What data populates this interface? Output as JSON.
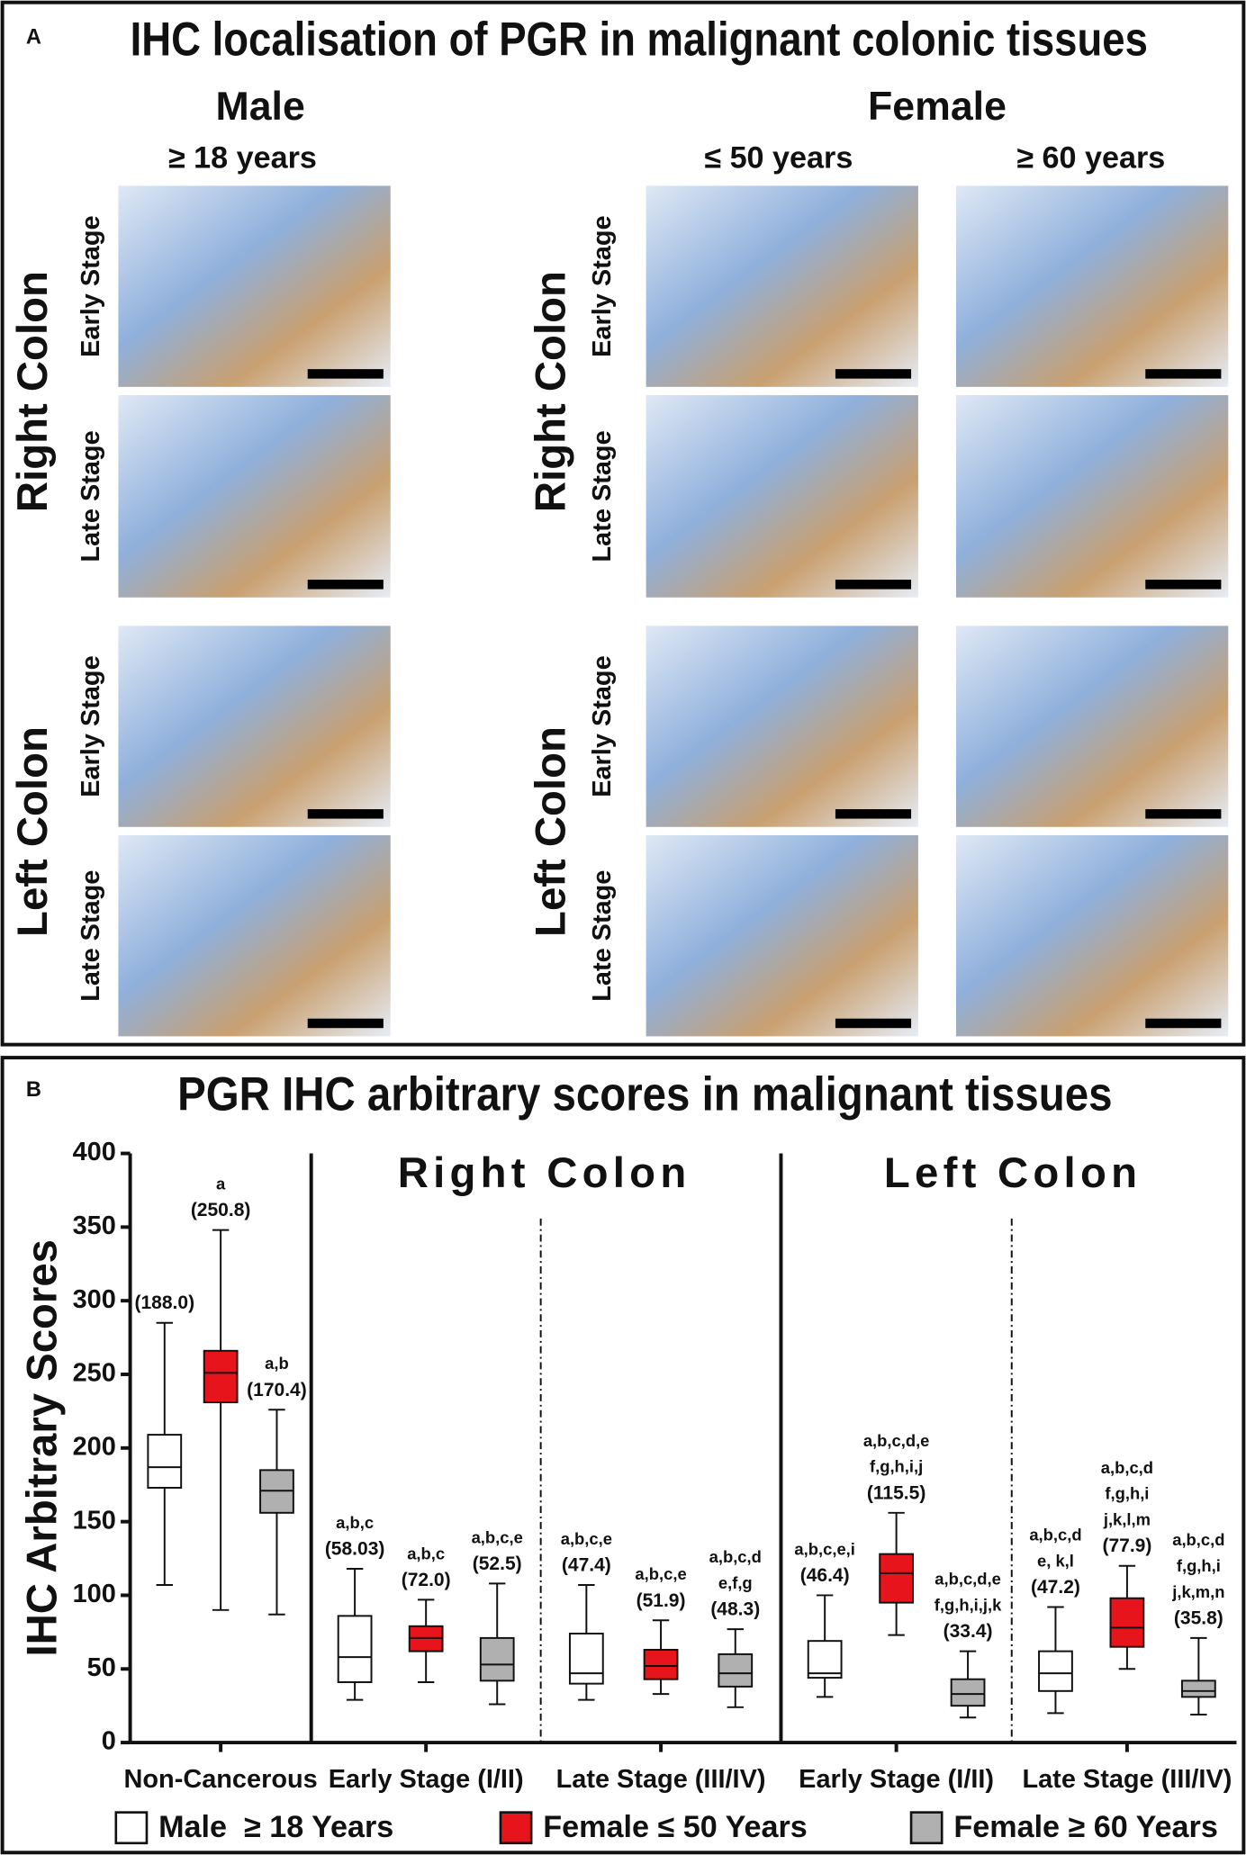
{
  "panel_a": {
    "label": "A",
    "title": "IHC localisation of PGR in malignant colonic tissues",
    "sexes": [
      "Male",
      "Female"
    ],
    "ages": [
      "≥ 18 years",
      "≤ 50 years",
      "≥ 60 years"
    ],
    "regions": [
      "Right Colon",
      "Left Colon"
    ],
    "stages": [
      "Early Stage",
      "Late Stage"
    ]
  },
  "chart_data": {
    "type": "box",
    "panel_label": "B",
    "title": "PGR IHC arbitrary scores in malignant tissues",
    "ylabel": "IHC Arbitrary Scores",
    "ylim": [
      0,
      400
    ],
    "yticks": [
      0,
      50,
      100,
      150,
      200,
      250,
      300,
      350,
      400
    ],
    "sections": [
      "Right Colon",
      "Left Colon"
    ],
    "categories": [
      "Non-Cancerous",
      "Early Stage (I/II)",
      "Late Stage (III/IV)",
      "Early Stage (I/II)",
      "Late Stage (III/IV)"
    ],
    "series": [
      {
        "name": "Male  ≥ 18 Years",
        "color": "#ffffff",
        "min": [
          107,
          29,
          29,
          31,
          20
        ],
        "q1": [
          173,
          41,
          40,
          44,
          35
        ],
        "median": [
          187,
          58,
          47,
          47,
          47
        ],
        "q3": [
          209,
          86,
          74,
          69,
          62
        ],
        "max": [
          285,
          118,
          107,
          100,
          92
        ],
        "annotations": [
          [
            "(188.0)"
          ],
          [
            "a,b,c",
            "(58.03)"
          ],
          [
            "a,b,c,e",
            "(47.4)"
          ],
          [
            "a,b,c,e,i",
            "(46.4)"
          ],
          [
            "a,b,c,d",
            "e, k,l",
            "(47.2)"
          ]
        ]
      },
      {
        "name": "Female ≤ 50 Years",
        "color": "#e8141b",
        "min": [
          90,
          41,
          33,
          73,
          50
        ],
        "q1": [
          231,
          62,
          43,
          95,
          65
        ],
        "median": [
          251,
          71,
          52,
          115,
          78
        ],
        "q3": [
          266,
          79,
          63,
          128,
          98
        ],
        "max": [
          348,
          97,
          83,
          156,
          120
        ],
        "annotations": [
          [
            "a",
            "(250.8)"
          ],
          [
            "a,b,c",
            "(72.0)"
          ],
          [
            "a,b,c,e",
            "(51.9)"
          ],
          [
            "a,b,c,d,e",
            "f,g,h,i,j",
            "(115.5)"
          ],
          [
            "a,b,c,d",
            "f,g,h,i",
            "j,k,l,m",
            "(77.9)"
          ]
        ]
      },
      {
        "name": "Female ≥ 60 Years",
        "color": "#b0b0b0",
        "min": [
          87,
          26,
          24,
          17,
          19
        ],
        "q1": [
          156,
          42,
          38,
          25,
          31
        ],
        "median": [
          171,
          53,
          47,
          33,
          35
        ],
        "q3": [
          185,
          71,
          60,
          43,
          42
        ],
        "max": [
          226,
          108,
          77,
          62,
          71
        ],
        "annotations": [
          [
            "a,b",
            "(170.4)"
          ],
          [
            "a,b,c,e",
            "(52.5)"
          ],
          [
            "a,b,c,d",
            "e,f,g",
            "(48.3)"
          ],
          [
            "a,b,c,d,e",
            "f,g,h,i,j,k",
            "(33.4)"
          ],
          [
            "a,b,c,d",
            "f,g,h,i",
            "j,k,m,n",
            "(35.8)"
          ]
        ]
      }
    ]
  }
}
